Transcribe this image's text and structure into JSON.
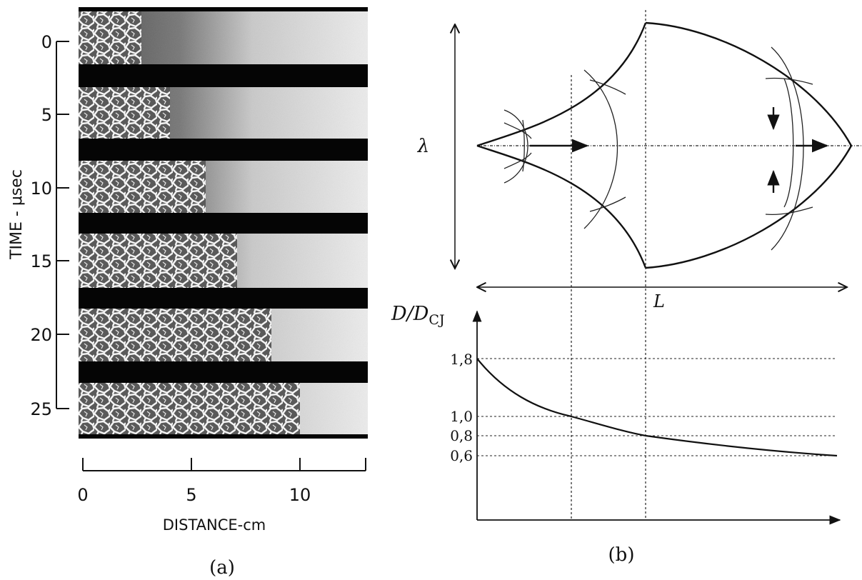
{
  "panel_a": {
    "caption": "(a)",
    "y_axis_label": "TIME - μsec",
    "y_ticks": [
      "0",
      "5",
      "10",
      "15",
      "20",
      "25"
    ],
    "x_axis_label": "DISTANCE-cm",
    "x_ticks": [
      "0",
      "5",
      "10"
    ]
  },
  "panel_b": {
    "caption": "(b)",
    "lambda_label": "λ",
    "length_label": "L",
    "ylabel_main": "D/D",
    "ylabel_sub": "CJ",
    "levels": [
      "1,8",
      "1,0",
      "0,8",
      "0,6"
    ]
  }
}
